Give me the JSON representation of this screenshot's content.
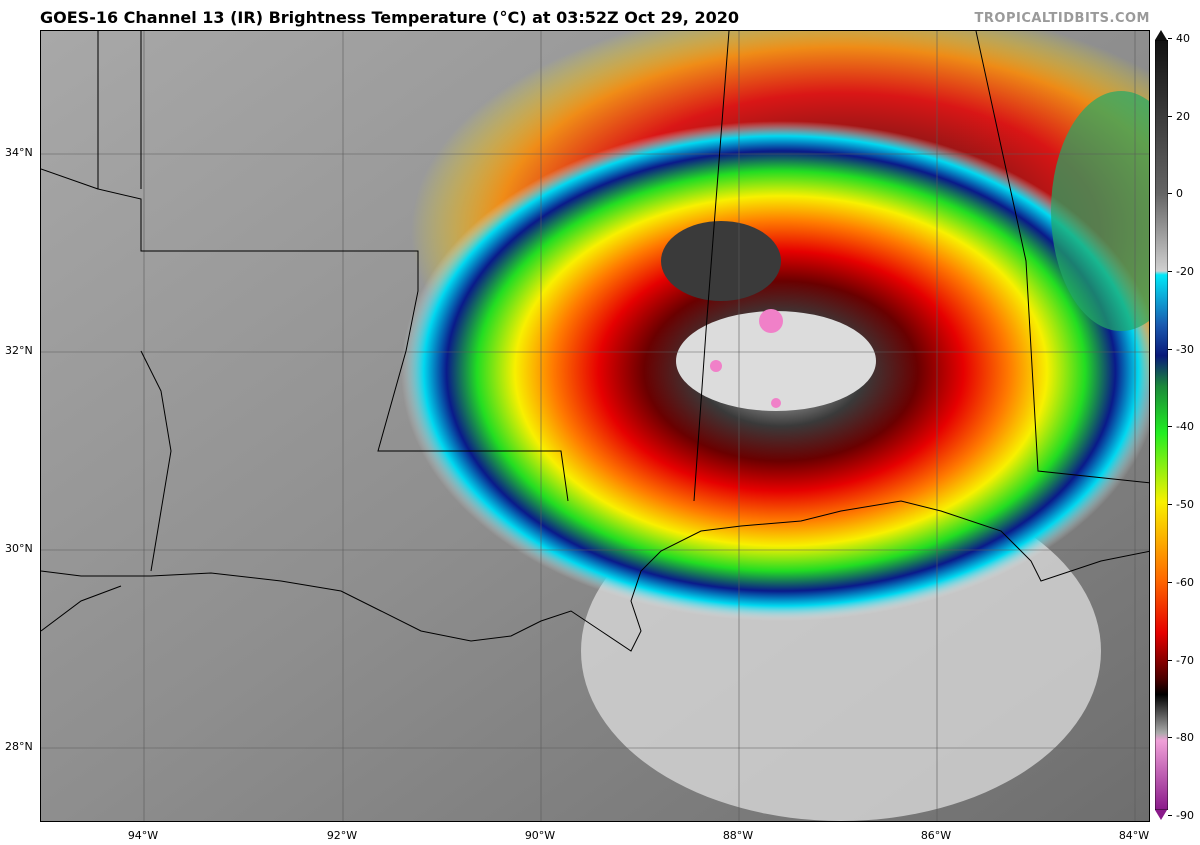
{
  "header": {
    "title": "GOES-16 Channel 13 (IR) Brightness Temperature (°C) at 03:52Z Oct 29, 2020",
    "credit": "TROPICALTIDBITS.COM"
  },
  "map": {
    "lat_labels": [
      "34°N",
      "32°N",
      "30°N",
      "28°N"
    ],
    "lon_labels": [
      "94°W",
      "92°W",
      "90°W",
      "88°W",
      "86°W",
      "84°W"
    ],
    "lon_range": [
      -95.05,
      -83.9
    ],
    "lat_range": [
      27.25,
      35.25
    ]
  },
  "colorbar": {
    "labels": [
      "40",
      "20",
      "0",
      "-20",
      "-30",
      "-40",
      "-50",
      "-60",
      "-70",
      "-80",
      "-90"
    ],
    "colors": {
      "warm_top": "#1a1a1a",
      "gray_mid": "#cfcfcf",
      "cyan": "#00d8f0",
      "blue": "#0a1a8a",
      "green": "#22dd22",
      "yellow": "#f8f000",
      "orange": "#ff7a00",
      "red": "#e60000",
      "dark_red": "#6a0000",
      "black": "#000000",
      "pink": "#f080c8",
      "purple": "#8a1a8a"
    }
  }
}
